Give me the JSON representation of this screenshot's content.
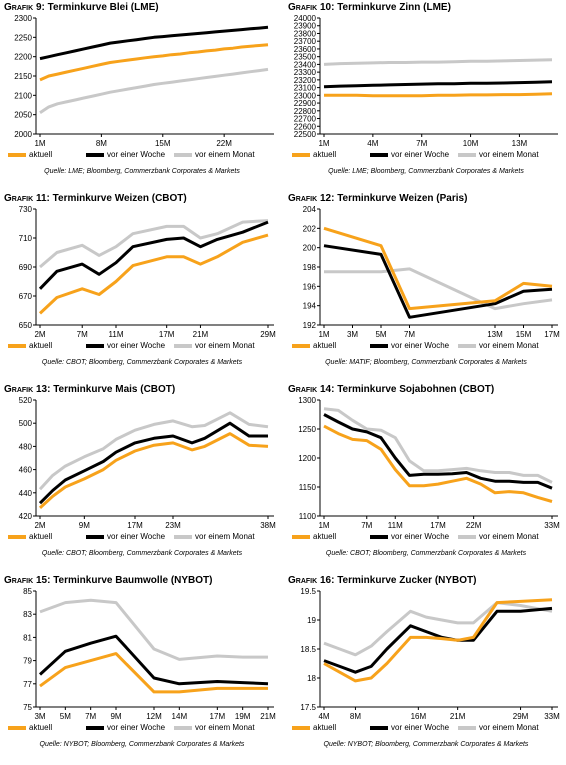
{
  "legend": [
    "aktuell",
    "vor einer Woche",
    "vor einem Monat"
  ],
  "colors": {
    "aktuell": "#f7a21b",
    "vor einer Woche": "#000000",
    "vor einem Monat": "#c8c8c8"
  },
  "chart_data": [
    {
      "prefix": "Grafik 9:",
      "title": "Terminkurve Blei (LME)",
      "type": "line",
      "source": "Quelle: LME; Bloomberg, Commerzbank Corporates & Markets",
      "x_ticks": [
        "1M",
        "8M",
        "15M",
        "22M"
      ],
      "y_ticks": [
        2000,
        2050,
        2100,
        2150,
        2200,
        2250,
        2300
      ],
      "ylim": [
        2000,
        2300
      ],
      "x": [
        1,
        2,
        3,
        4,
        5,
        6,
        7,
        8,
        9,
        10,
        11,
        12,
        13,
        14,
        15,
        16,
        17,
        18,
        19,
        20,
        21,
        22,
        23,
        24,
        25,
        26,
        27
      ],
      "series": [
        {
          "name": "aktuell",
          "values": [
            2140,
            2150,
            2155,
            2160,
            2165,
            2170,
            2175,
            2180,
            2185,
            2188,
            2191,
            2194,
            2197,
            2200,
            2202,
            2205,
            2207,
            2210,
            2212,
            2215,
            2217,
            2220,
            2222,
            2225,
            2227,
            2229,
            2231
          ]
        },
        {
          "name": "vor einer Woche",
          "values": [
            2195,
            2200,
            2205,
            2210,
            2215,
            2220,
            2225,
            2230,
            2235,
            2238,
            2241,
            2244,
            2247,
            2250,
            2252,
            2254,
            2256,
            2258,
            2260,
            2262,
            2264,
            2266,
            2268,
            2270,
            2272,
            2274,
            2276
          ]
        },
        {
          "name": "vor einem Monat",
          "values": [
            2055,
            2070,
            2078,
            2083,
            2088,
            2093,
            2098,
            2103,
            2108,
            2112,
            2116,
            2120,
            2124,
            2128,
            2131,
            2134,
            2137,
            2140,
            2143,
            2146,
            2149,
            2152,
            2155,
            2158,
            2161,
            2164,
            2167
          ]
        }
      ]
    },
    {
      "prefix": "Grafik 10:",
      "title": "Terminkurve Zinn (LME)",
      "type": "line",
      "source": "Quelle: LME; Bloomberg, Commerzbank Corporates & Markets",
      "x_ticks": [
        "1M",
        "4M",
        "7M",
        "10M",
        "13M"
      ],
      "y_ticks": [
        22500,
        22600,
        22700,
        22800,
        22900,
        23000,
        23100,
        23200,
        23300,
        23400,
        23500,
        23600,
        23700,
        23800,
        23900,
        24000
      ],
      "ylim": [
        22500,
        24000
      ],
      "x": [
        1,
        2,
        3,
        4,
        5,
        6,
        7,
        8,
        9,
        10,
        11,
        12,
        13,
        14,
        15
      ],
      "series": [
        {
          "name": "aktuell",
          "values": [
            23000,
            23000,
            23000,
            22995,
            22995,
            22995,
            22995,
            23000,
            23000,
            23005,
            23005,
            23010,
            23010,
            23015,
            23020
          ]
        },
        {
          "name": "vor einer Woche",
          "values": [
            23110,
            23120,
            23125,
            23130,
            23135,
            23140,
            23145,
            23150,
            23150,
            23155,
            23155,
            23160,
            23165,
            23170,
            23175
          ]
        },
        {
          "name": "vor einem Monat",
          "values": [
            23400,
            23410,
            23415,
            23420,
            23425,
            23425,
            23430,
            23430,
            23435,
            23440,
            23440,
            23445,
            23450,
            23455,
            23460
          ]
        }
      ]
    },
    {
      "prefix": "Grafik 11:",
      "title": "Terminkurve Weizen (CBOT)",
      "type": "line",
      "source": "Quelle: CBOT; Bloomberg, Commerzbank Corporates & Markets",
      "x_ticks": [
        "2M",
        "7M",
        "11M",
        "17M",
        "21M",
        "29M"
      ],
      "y_ticks": [
        650,
        670,
        690,
        710,
        730
      ],
      "ylim": [
        650,
        730
      ],
      "x": [
        2,
        4,
        7,
        9,
        11,
        13,
        17,
        19,
        21,
        23,
        26,
        29
      ],
      "series": [
        {
          "name": "aktuell",
          "values": [
            658,
            669,
            675,
            671,
            680,
            691,
            697,
            697,
            692,
            697,
            707,
            712
          ]
        },
        {
          "name": "vor einer Woche",
          "values": [
            675,
            687,
            692,
            685,
            693,
            704,
            709,
            710,
            704,
            709,
            714,
            721
          ]
        },
        {
          "name": "vor einem Monat",
          "values": [
            690,
            700,
            705,
            698,
            704,
            713,
            718,
            718,
            710,
            713,
            721,
            722
          ]
        }
      ]
    },
    {
      "prefix": "Grafik 12:",
      "title": "Terminkurve Weizen (Paris)",
      "type": "line",
      "source": "Quelle: MATIF; Bloomberg, Commerzbank Corporates & Markets",
      "x_ticks": [
        "1M",
        "3M",
        "5M",
        "7M",
        "13M",
        "15M",
        "17M"
      ],
      "y_ticks": [
        192,
        194,
        196,
        198,
        200,
        202,
        204
      ],
      "ylim": [
        192,
        204
      ],
      "x": [
        1,
        5,
        7,
        13,
        15,
        17
      ],
      "series": [
        {
          "name": "aktuell",
          "values": [
            202,
            200.2,
            193.7,
            194.5,
            196.3,
            196.0
          ]
        },
        {
          "name": "vor einer Woche",
          "values": [
            200.2,
            199.3,
            192.8,
            194.2,
            195.5,
            195.7
          ]
        },
        {
          "name": "vor einem Monat",
          "values": [
            197.5,
            197.5,
            197.8,
            193.7,
            194.2,
            194.6
          ]
        }
      ]
    },
    {
      "prefix": "Grafik 13:",
      "title": "Terminkurve Mais (CBOT)",
      "type": "line",
      "source": "Quelle: CBOT; Bloomberg, Commerzbank Corporates & Markets",
      "x_ticks": [
        "2M",
        "9M",
        "17M",
        "23M",
        "38M"
      ],
      "y_ticks": [
        420,
        440,
        460,
        480,
        500,
        520
      ],
      "ylim": [
        420,
        520
      ],
      "x": [
        2,
        4,
        6,
        9,
        12,
        14,
        17,
        20,
        23,
        26,
        28,
        32,
        35,
        38
      ],
      "series": [
        {
          "name": "aktuell",
          "values": [
            427,
            437,
            445,
            452,
            460,
            468,
            476,
            481,
            483,
            477,
            480,
            491,
            481,
            480
          ]
        },
        {
          "name": "vor einer Woche",
          "values": [
            431,
            442,
            451,
            459,
            467,
            475,
            483,
            487,
            489,
            483,
            487,
            500,
            489,
            489
          ]
        },
        {
          "name": "vor einem Monat",
          "values": [
            443,
            455,
            463,
            471,
            478,
            486,
            494,
            499,
            502,
            497,
            498,
            509,
            499,
            497
          ]
        }
      ]
    },
    {
      "prefix": "Grafik 14:",
      "title": "Terminkurve Sojabohnen (CBOT)",
      "type": "line",
      "source": "Quelle: CBOT; Bloomberg, Commerzbank Corporates & Markets",
      "x_ticks": [
        "1M",
        "7M",
        "11M",
        "17M",
        "22M",
        "33M"
      ],
      "y_ticks": [
        1100,
        1150,
        1200,
        1250,
        1300
      ],
      "ylim": [
        1100,
        1300
      ],
      "x": [
        1,
        3,
        5,
        7,
        9,
        11,
        13,
        15,
        17,
        19,
        21,
        23,
        25,
        27,
        29,
        31,
        33
      ],
      "series": [
        {
          "name": "aktuell",
          "values": [
            1255,
            1242,
            1232,
            1230,
            1215,
            1180,
            1152,
            1152,
            1155,
            1160,
            1165,
            1155,
            1140,
            1142,
            1140,
            1132,
            1125
          ]
        },
        {
          "name": "vor einer Woche",
          "values": [
            1275,
            1262,
            1250,
            1245,
            1235,
            1200,
            1170,
            1172,
            1172,
            1173,
            1175,
            1165,
            1160,
            1160,
            1158,
            1158,
            1148
          ]
        },
        {
          "name": "vor einem Monat",
          "values": [
            1285,
            1282,
            1265,
            1250,
            1248,
            1235,
            1195,
            1178,
            1178,
            1180,
            1182,
            1178,
            1175,
            1175,
            1170,
            1170,
            1158
          ]
        }
      ]
    },
    {
      "prefix": "Grafik 15:",
      "title": "Terminkurve Baumwolle (NYBOT)",
      "type": "line",
      "source": "Quelle: NYBOT; Bloomberg, Commerzbank Corporates & Markets",
      "x_ticks": [
        "3M",
        "5M",
        "7M",
        "9M",
        "12M",
        "14M",
        "17M",
        "19M",
        "21M"
      ],
      "y_ticks": [
        75,
        77,
        79,
        81,
        83,
        85
      ],
      "ylim": [
        75,
        85
      ],
      "x": [
        3,
        5,
        7,
        9,
        12,
        14,
        17,
        19,
        21
      ],
      "series": [
        {
          "name": "aktuell",
          "values": [
            76.8,
            78.4,
            79.0,
            79.6,
            76.3,
            76.3,
            76.6,
            76.6,
            76.6
          ]
        },
        {
          "name": "vor einer Woche",
          "values": [
            77.8,
            79.8,
            80.5,
            81.1,
            77.5,
            77.0,
            77.2,
            77.1,
            77.0
          ]
        },
        {
          "name": "vor einem Monat",
          "values": [
            83.2,
            84.0,
            84.2,
            84.0,
            80.0,
            79.1,
            79.4,
            79.3,
            79.3
          ]
        }
      ]
    },
    {
      "prefix": "Grafik 16:",
      "title": "Terminkurve Zucker (NYBOT)",
      "type": "line",
      "source": "Quelle: NYBOT; Bloomberg, Commerzbank Corporates & Markets",
      "x_ticks": [
        "4M",
        "8M",
        "16M",
        "21M",
        "29M",
        "33M"
      ],
      "y_ticks": [
        17.5,
        18.0,
        18.5,
        19.0,
        19.5
      ],
      "ylim": [
        17.5,
        19.5
      ],
      "x": [
        4,
        6,
        8,
        10,
        12,
        15,
        17,
        19,
        21,
        23,
        26,
        29,
        33
      ],
      "series": [
        {
          "name": "aktuell",
          "values": [
            18.25,
            18.1,
            17.95,
            18.0,
            18.25,
            18.7,
            18.7,
            18.68,
            18.65,
            18.7,
            19.3,
            19.32,
            19.35
          ]
        },
        {
          "name": "vor einer Woche",
          "values": [
            18.3,
            18.2,
            18.1,
            18.2,
            18.5,
            18.9,
            18.8,
            18.7,
            18.65,
            18.65,
            19.15,
            19.15,
            19.2
          ]
        },
        {
          "name": "vor einem Monat",
          "values": [
            18.6,
            18.5,
            18.4,
            18.55,
            18.8,
            19.15,
            19.05,
            19.0,
            18.95,
            18.95,
            19.3,
            19.25,
            19.15
          ]
        }
      ]
    }
  ]
}
